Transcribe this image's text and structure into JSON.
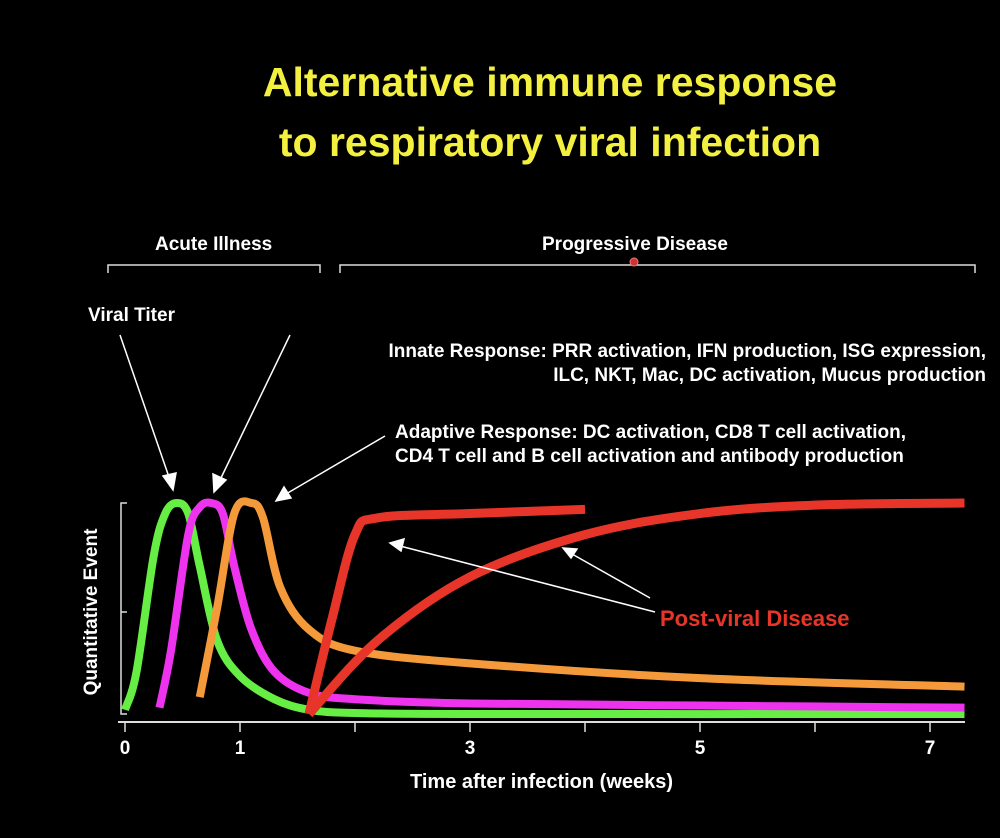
{
  "title_lines": [
    "Alternative immune response",
    "to respiratory viral infection"
  ],
  "phases": [
    {
      "label": "Acute Illness"
    },
    {
      "label": "Progressive Disease"
    }
  ],
  "annotations": {
    "viral_titer": "Viral Titer",
    "innate": [
      "Innate Response: PRR activation, IFN production, ISG expression,",
      "ILC, NKT, Mac, DC activation, Mucus production"
    ],
    "adaptive": [
      "Adaptive Response:  DC activation, CD8 T cell activation,",
      "CD4 T cell and B cell activation and antibody production"
    ],
    "post_viral": "Post-viral Disease"
  },
  "chart_data": {
    "type": "line",
    "title": "Alternative immune response to respiratory viral infection",
    "xlabel": "Time after infection (weeks)",
    "ylabel": "Quantitative Event",
    "xlim": [
      0,
      7.4
    ],
    "ylim": [
      0,
      1
    ],
    "xticks": [
      0,
      1,
      2,
      3,
      4,
      5,
      6,
      7
    ],
    "xtick_labels": [
      "0",
      "1",
      "",
      "3",
      "",
      "5",
      "",
      "7"
    ],
    "grid": false,
    "series": [
      {
        "name": "Viral Titer",
        "color": "#66ee44",
        "points": [
          [
            0,
            0.02
          ],
          [
            0.1,
            0.2
          ],
          [
            0.25,
            0.75
          ],
          [
            0.35,
            0.95
          ],
          [
            0.45,
            1
          ],
          [
            0.55,
            0.95
          ],
          [
            0.65,
            0.7
          ],
          [
            0.8,
            0.35
          ],
          [
            1,
            0.18
          ],
          [
            1.3,
            0.07
          ],
          [
            1.6,
            0.02
          ],
          [
            2,
            0.005
          ],
          [
            3,
            0
          ],
          [
            7.3,
            0
          ]
        ]
      },
      {
        "name": "Innate Response",
        "color": "#ee33ee",
        "points": [
          [
            0.3,
            0.03
          ],
          [
            0.4,
            0.3
          ],
          [
            0.55,
            0.85
          ],
          [
            0.65,
            0.98
          ],
          [
            0.75,
            1
          ],
          [
            0.85,
            0.95
          ],
          [
            0.95,
            0.7
          ],
          [
            1.1,
            0.4
          ],
          [
            1.3,
            0.2
          ],
          [
            1.6,
            0.1
          ],
          [
            2,
            0.07
          ],
          [
            3,
            0.05
          ],
          [
            5,
            0.04
          ],
          [
            7.3,
            0.03
          ]
        ]
      },
      {
        "name": "Adaptive Response",
        "color": "#f49a3a",
        "points": [
          [
            0.65,
            0.08
          ],
          [
            0.8,
            0.5
          ],
          [
            0.95,
            0.95
          ],
          [
            1.1,
            1
          ],
          [
            1.2,
            0.93
          ],
          [
            1.35,
            0.6
          ],
          [
            1.6,
            0.4
          ],
          [
            2,
            0.3
          ],
          [
            3,
            0.24
          ],
          [
            5,
            0.17
          ],
          [
            7.3,
            0.13
          ]
        ]
      },
      {
        "name": "Post-viral Disease",
        "color": "#e8352a",
        "points": [
          [
            1.6,
            0
          ],
          [
            1.8,
            0.45
          ],
          [
            2,
            0.85
          ],
          [
            2.2,
            0.93
          ],
          [
            3,
            0.95
          ],
          [
            4,
            0.97
          ]
        ]
      },
      {
        "name": "Post-viral Disease",
        "color": "#e8352a",
        "points": [
          [
            1.6,
            0
          ],
          [
            2.2,
            0.35
          ],
          [
            3,
            0.65
          ],
          [
            4,
            0.85
          ],
          [
            5,
            0.95
          ],
          [
            6,
            0.99
          ],
          [
            7.3,
            1
          ]
        ]
      }
    ]
  }
}
